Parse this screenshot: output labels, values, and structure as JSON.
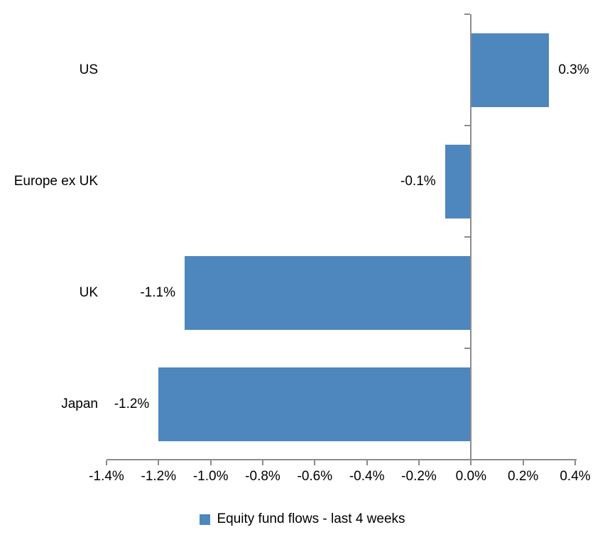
{
  "chart_data": {
    "type": "bar",
    "orientation": "horizontal",
    "title": "",
    "xlabel": "",
    "ylabel": "",
    "categories": [
      "US",
      "Europe ex UK",
      "UK",
      "Japan"
    ],
    "series": [
      {
        "name": "Equity fund flows - last 4 weeks",
        "values": [
          0.3,
          -0.1,
          -1.1,
          -1.2
        ],
        "data_labels": [
          "0.3%",
          "-0.1%",
          "-1.1%",
          "-1.2%"
        ]
      }
    ],
    "xlim": [
      -1.4,
      0.4
    ],
    "x_tick_step": 0.2,
    "x_tick_labels": [
      "-1.4%",
      "-1.2%",
      "-1.0%",
      "-0.8%",
      "-0.6%",
      "-0.4%",
      "-0.2%",
      "0.0%",
      "0.2%",
      "0.4%"
    ],
    "grid": false,
    "legend_position": "bottom",
    "bar_color": "#4D87BD",
    "axis_color": "#8C8C8C",
    "text_color": "#000000",
    "background_color": "#FFFFFF"
  }
}
